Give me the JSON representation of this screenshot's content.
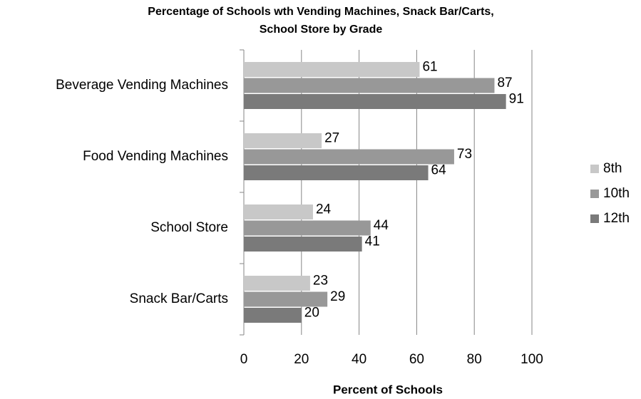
{
  "chart_data": {
    "type": "bar",
    "orientation": "horizontal",
    "title": [
      "Percentage of Schools wth Vending Machines, Snack Bar/Carts,",
      "School Store by Grade"
    ],
    "x_label": "Percent of Schools",
    "categories": [
      "Beverage Vending Machines",
      "Food Vending Machines",
      "School Store",
      "Snack Bar/Carts"
    ],
    "series": [
      {
        "name": "8th",
        "color": "#c8c8c8",
        "values": [
          61,
          27,
          24,
          23
        ]
      },
      {
        "name": "10th",
        "color": "#989898",
        "values": [
          87,
          73,
          44,
          29
        ]
      },
      {
        "name": "12th",
        "color": "#7a7a7a",
        "values": [
          91,
          64,
          41,
          20
        ]
      }
    ],
    "xlim": [
      0,
      100
    ],
    "xticks": [
      0,
      20,
      40,
      60,
      80,
      100
    ],
    "grid": true,
    "legend": "right"
  }
}
